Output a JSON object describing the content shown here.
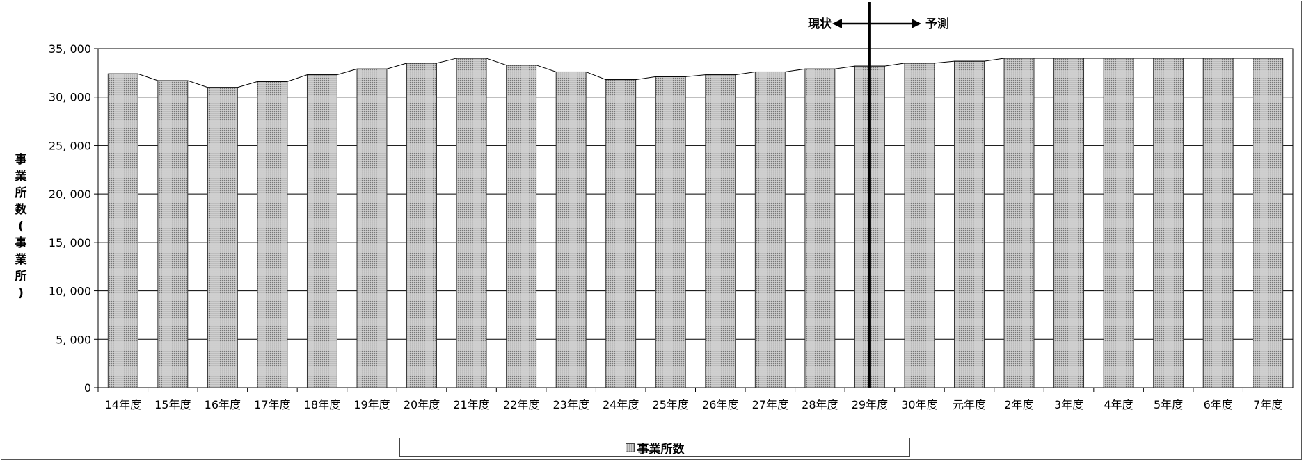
{
  "chart_data": {
    "type": "bar",
    "categories": [
      "14年度",
      "15年度",
      "16年度",
      "17年度",
      "18年度",
      "19年度",
      "20年度",
      "21年度",
      "22年度",
      "23年度",
      "24年度",
      "25年度",
      "26年度",
      "27年度",
      "28年度",
      "29年度",
      "30年度",
      "元年度",
      "2年度",
      "3年度",
      "4年度",
      "5年度",
      "6年度",
      "7年度"
    ],
    "series": [
      {
        "name": "事業所数",
        "values": [
          32400,
          31700,
          31000,
          31600,
          32300,
          32900,
          33500,
          34000,
          33300,
          32600,
          31800,
          32100,
          32300,
          32600,
          32900,
          33200,
          33500,
          33700,
          34000,
          34000,
          34000,
          34000,
          34000,
          34000
        ]
      }
    ],
    "ylabel": "事業所数(事業所)",
    "ylim": [
      0,
      35000
    ],
    "yticks": [
      0,
      5000,
      10000,
      15000,
      20000,
      25000,
      30000,
      35000
    ],
    "ytick_labels": [
      "0",
      "5, 000",
      "10, 000",
      "15, 000",
      "20, 000",
      "25, 000",
      "30, 000",
      "35, 000"
    ],
    "grid": true,
    "legend_position": "bottom",
    "divider_after_category": "29年度",
    "annotation_left": "現状",
    "annotation_right": "予測",
    "colors": {
      "bar_fill": "#cfcfcf",
      "bar_dots": "#777777",
      "line": "#000000"
    }
  }
}
